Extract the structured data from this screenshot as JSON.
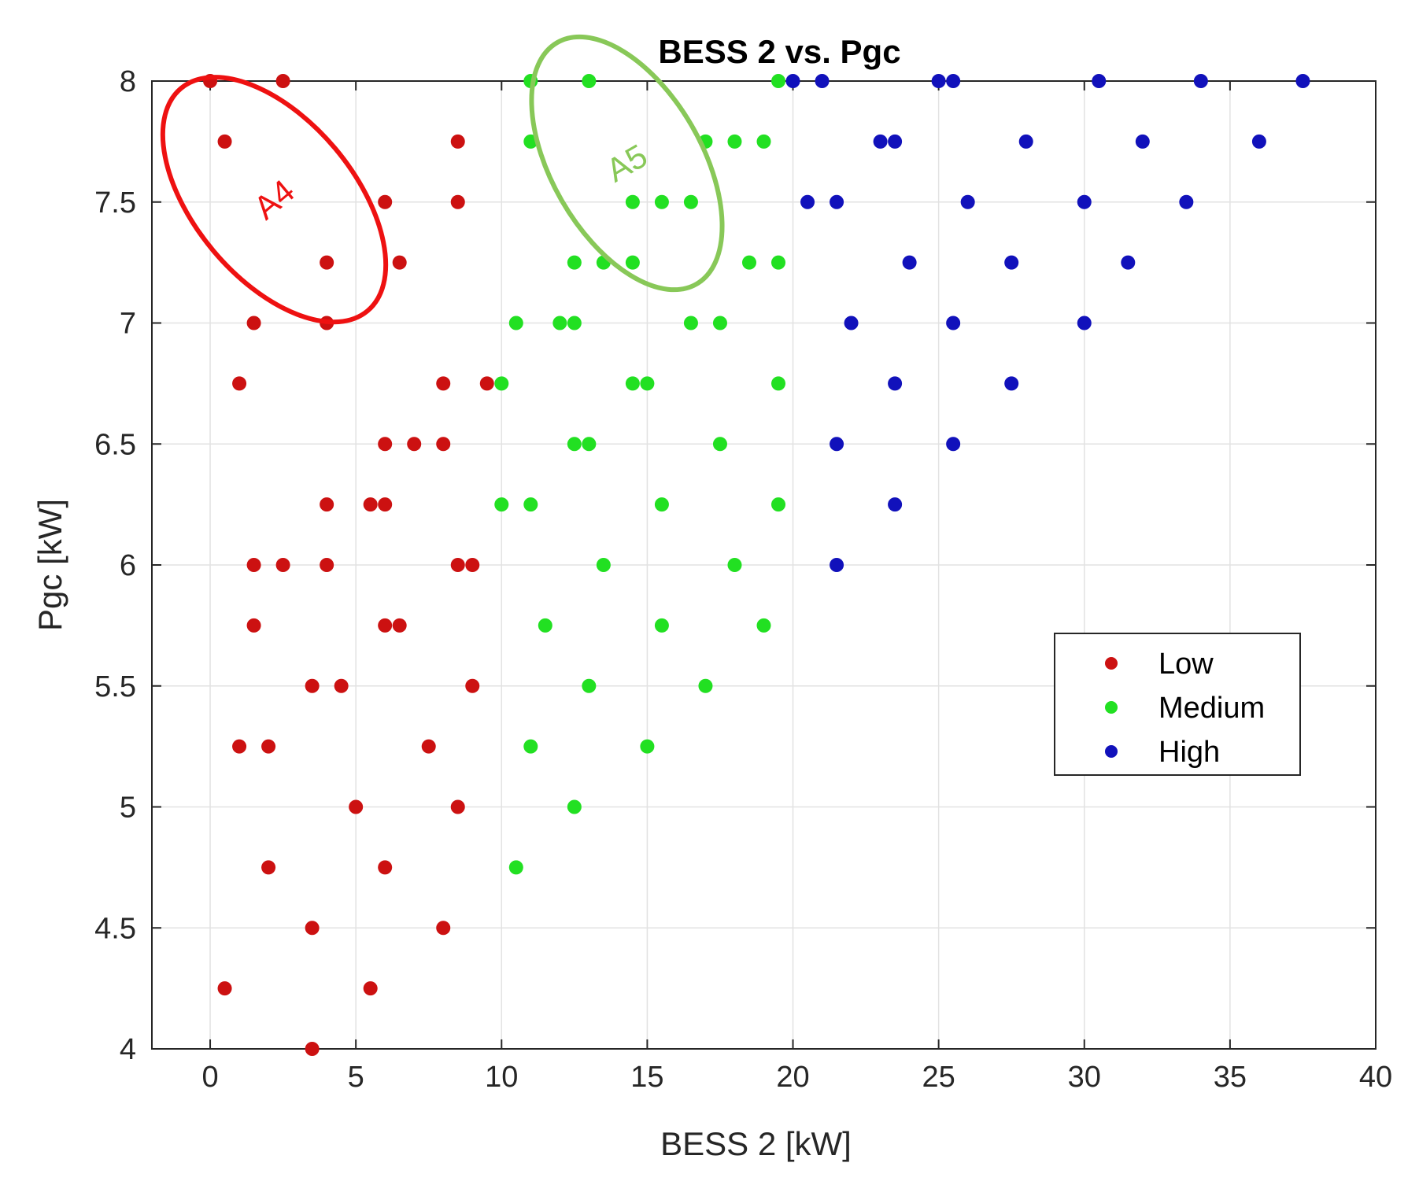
{
  "chart_data": {
    "type": "scatter",
    "title": "BESS 2 vs. Pgc",
    "xlabel": "BESS 2 [kW]",
    "ylabel": "Pgc [kW]",
    "xlim": [
      -2,
      40
    ],
    "ylim": [
      4,
      8
    ],
    "xticks": [
      0,
      5,
      10,
      15,
      20,
      25,
      30,
      35,
      40
    ],
    "xtick_labels": [
      "0",
      "5",
      "10",
      "15",
      "20",
      "25",
      "30",
      "35",
      "40"
    ],
    "yticks": [
      4,
      4.5,
      5,
      5.5,
      6,
      6.5,
      7,
      7.5,
      8
    ],
    "ytick_labels": [
      "4",
      "4.5",
      "5",
      "5.5",
      "6",
      "6.5",
      "7",
      "7.5",
      "8"
    ],
    "grid": true,
    "legend_position": "right",
    "series": [
      {
        "name": "Low",
        "color": "#cc1111",
        "points": [
          [
            0,
            8
          ],
          [
            2.5,
            8
          ],
          [
            0.5,
            7.75
          ],
          [
            8.5,
            7.75
          ],
          [
            6,
            7.5
          ],
          [
            8.5,
            7.5
          ],
          [
            4,
            7.25
          ],
          [
            6.5,
            7.25
          ],
          [
            1.5,
            7
          ],
          [
            4,
            7
          ],
          [
            1,
            6.75
          ],
          [
            8,
            6.75
          ],
          [
            9.5,
            6.75
          ],
          [
            6,
            6.5
          ],
          [
            7,
            6.5
          ],
          [
            8,
            6.5
          ],
          [
            4,
            6.25
          ],
          [
            5.5,
            6.25
          ],
          [
            6,
            6.25
          ],
          [
            1.5,
            6
          ],
          [
            2.5,
            6
          ],
          [
            4,
            6
          ],
          [
            8.5,
            6
          ],
          [
            9,
            6
          ],
          [
            1.5,
            5.75
          ],
          [
            6,
            5.75
          ],
          [
            6.5,
            5.75
          ],
          [
            3.5,
            5.5
          ],
          [
            4.5,
            5.5
          ],
          [
            9,
            5.5
          ],
          [
            1,
            5.25
          ],
          [
            2,
            5.25
          ],
          [
            7.5,
            5.25
          ],
          [
            5,
            5
          ],
          [
            8.5,
            5
          ],
          [
            2,
            4.75
          ],
          [
            6,
            4.75
          ],
          [
            3.5,
            4.5
          ],
          [
            8,
            4.5
          ],
          [
            0.5,
            4.25
          ],
          [
            5.5,
            4.25
          ],
          [
            3.5,
            4
          ]
        ]
      },
      {
        "name": "Medium",
        "color": "#22e022",
        "points": [
          [
            11,
            8
          ],
          [
            13,
            8
          ],
          [
            19.5,
            8
          ],
          [
            11,
            7.75
          ],
          [
            17,
            7.75
          ],
          [
            18,
            7.75
          ],
          [
            19,
            7.75
          ],
          [
            14.5,
            7.5
          ],
          [
            15.5,
            7.5
          ],
          [
            16.5,
            7.5
          ],
          [
            12.5,
            7.25
          ],
          [
            13.5,
            7.25
          ],
          [
            14.5,
            7.25
          ],
          [
            18.5,
            7.25
          ],
          [
            19.5,
            7.25
          ],
          [
            10.5,
            7
          ],
          [
            12,
            7
          ],
          [
            12.5,
            7
          ],
          [
            16.5,
            7
          ],
          [
            17.5,
            7
          ],
          [
            10,
            6.75
          ],
          [
            14.5,
            6.75
          ],
          [
            15,
            6.75
          ],
          [
            19.5,
            6.75
          ],
          [
            12.5,
            6.5
          ],
          [
            13,
            6.5
          ],
          [
            17.5,
            6.5
          ],
          [
            10,
            6.25
          ],
          [
            11,
            6.25
          ],
          [
            15.5,
            6.25
          ],
          [
            19.5,
            6.25
          ],
          [
            13.5,
            6
          ],
          [
            18,
            6
          ],
          [
            11.5,
            5.75
          ],
          [
            15.5,
            5.75
          ],
          [
            19,
            5.75
          ],
          [
            13,
            5.5
          ],
          [
            17,
            5.5
          ],
          [
            11,
            5.25
          ],
          [
            15,
            5.25
          ],
          [
            12.5,
            5
          ],
          [
            10.5,
            4.75
          ]
        ]
      },
      {
        "name": "High",
        "color": "#1111bb",
        "points": [
          [
            20,
            8
          ],
          [
            21,
            8
          ],
          [
            25,
            8
          ],
          [
            25.5,
            8
          ],
          [
            30.5,
            8
          ],
          [
            34,
            8
          ],
          [
            37.5,
            8
          ],
          [
            23,
            7.75
          ],
          [
            23.5,
            7.75
          ],
          [
            28,
            7.75
          ],
          [
            32,
            7.75
          ],
          [
            36,
            7.75
          ],
          [
            20.5,
            7.5
          ],
          [
            21.5,
            7.5
          ],
          [
            26,
            7.5
          ],
          [
            30,
            7.5
          ],
          [
            33.5,
            7.5
          ],
          [
            24,
            7.25
          ],
          [
            27.5,
            7.25
          ],
          [
            31.5,
            7.25
          ],
          [
            22,
            7
          ],
          [
            25.5,
            7
          ],
          [
            30,
            7
          ],
          [
            23.5,
            6.75
          ],
          [
            27.5,
            6.75
          ],
          [
            21.5,
            6.5
          ],
          [
            25.5,
            6.5
          ],
          [
            23.5,
            6.25
          ],
          [
            21.5,
            6
          ]
        ]
      }
    ],
    "annotations": [
      {
        "text": "A4",
        "color": "#ee1111",
        "center": [
          2.2,
          7.51
        ],
        "radius": [
          3.5,
          0.5
        ],
        "rotation_deg": -40
      },
      {
        "text": "A5",
        "color": "#88c858",
        "center": [
          14.3,
          7.66
        ],
        "radius": [
          3.3,
          0.48
        ],
        "rotation_deg": -30
      }
    ]
  }
}
